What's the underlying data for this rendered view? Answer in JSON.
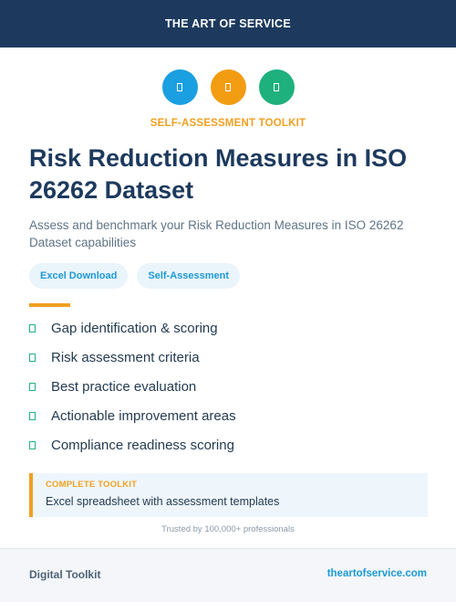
{
  "header": {
    "brand": "THE ART OF SERVICE"
  },
  "icons": [
    {
      "name": "spreadsheet-icon",
      "color": "#1a9fe0"
    },
    {
      "name": "clipboard-icon",
      "color": "#f29c12"
    },
    {
      "name": "chart-icon",
      "color": "#1eb07d"
    }
  ],
  "hero": {
    "kicker": "SELF-ASSESSMENT TOOLKIT",
    "title": "Risk Reduction Measures in ISO 26262 Dataset",
    "subtitle": "Assess and benchmark your Risk Reduction Measures in ISO 26262 Dataset capabilities"
  },
  "tags": [
    "Excel Download",
    "Self-Assessment"
  ],
  "features": [
    "Gap identification & scoring",
    "Risk assessment criteria",
    "Best practice evaluation",
    "Actionable improvement areas",
    "Compliance readiness scoring"
  ],
  "callout": {
    "label": "COMPLETE TOOLKIT",
    "text": "Excel spreadsheet with assessment templates"
  },
  "trust": "Trusted by 100,000+ professionals",
  "footer": {
    "left": "Digital Toolkit",
    "right": "theartofservice.com"
  },
  "colors": {
    "navy": "#1d3a5e",
    "accent_orange": "#f0a020",
    "accent_blue": "#1d9ad6",
    "check_green": "#22b07d"
  }
}
